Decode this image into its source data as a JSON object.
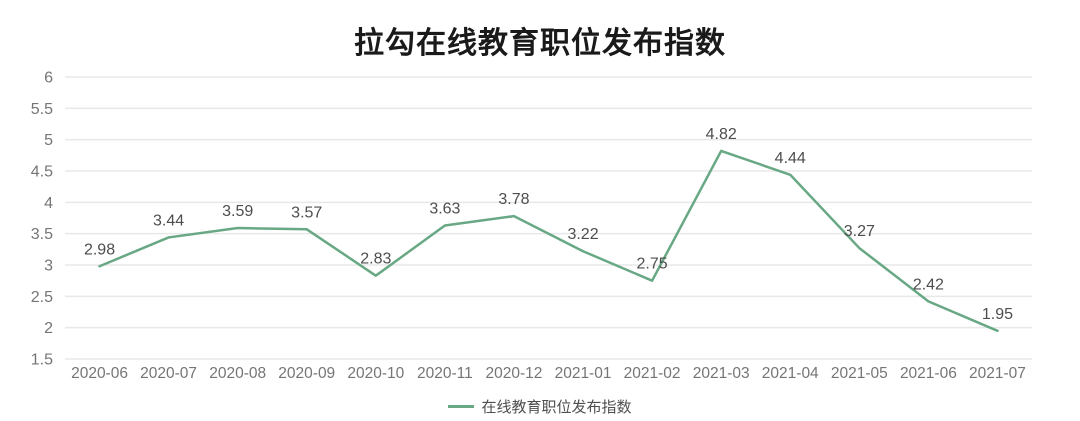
{
  "title": "拉勾在线教育职位发布指数",
  "legend": {
    "label": "在线教育职位发布指数",
    "swatch_color": "#68a884"
  },
  "chart_data": {
    "type": "line",
    "title": "拉勾在线教育职位发布指数",
    "categories": [
      "2020-06",
      "2020-07",
      "2020-08",
      "2020-09",
      "2020-10",
      "2020-11",
      "2020-12",
      "2021-01",
      "2021-02",
      "2021-03",
      "2021-04",
      "2021-05",
      "2021-06",
      "2021-07"
    ],
    "series": [
      {
        "name": "在线教育职位发布指数",
        "values": [
          2.98,
          3.44,
          3.59,
          3.57,
          2.83,
          3.63,
          3.78,
          3.22,
          2.75,
          4.82,
          4.44,
          3.27,
          2.42,
          1.95
        ],
        "color": "#68a884"
      }
    ],
    "xlabel": "",
    "ylabel": "",
    "ylim": [
      1.5,
      6
    ],
    "yticks": [
      6,
      5.5,
      5,
      4.5,
      4,
      3.5,
      3,
      2.5,
      2,
      1.5
    ],
    "grid": true,
    "grid_color": "#e8e8e8",
    "axis_label_color": "#757575",
    "data_label_color": "#4d4d4d",
    "data_labels": true,
    "legend_position": "bottom"
  }
}
